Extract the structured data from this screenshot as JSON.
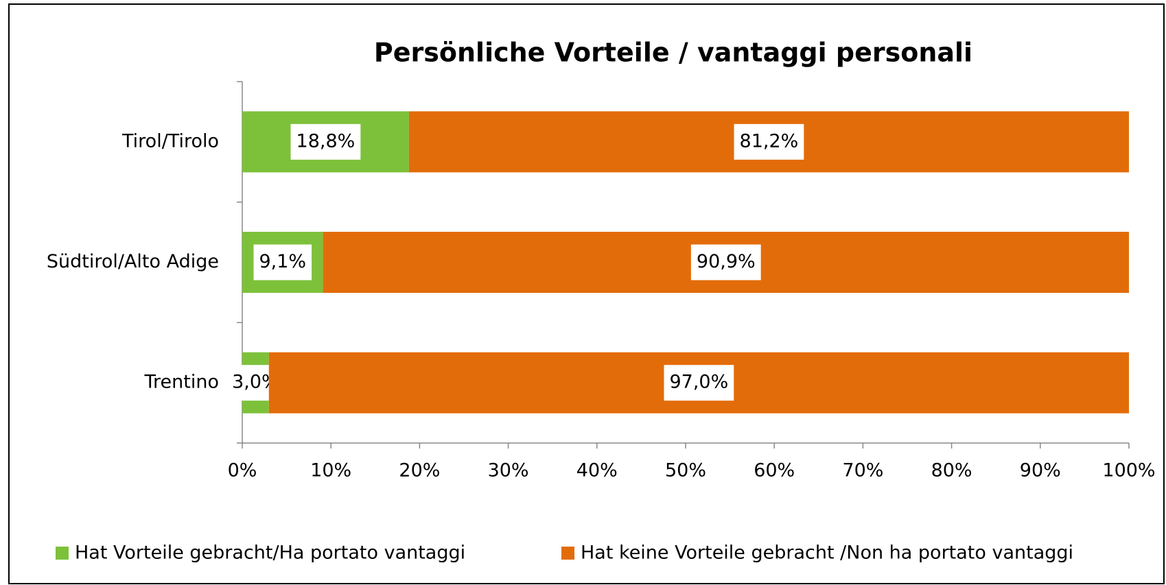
{
  "chart_data": {
    "type": "stacked-bar-horizontal",
    "title": "Persönliche Vorteile / vantaggi personali",
    "categories": [
      "Tirol/Tirolo",
      "Südtirol/Alto Adige",
      "Trentino"
    ],
    "series": [
      {
        "name": "Hat Vorteile gebracht/Ha portato vantaggi",
        "color": "#7dc13a",
        "values": [
          18.8,
          9.1,
          3.0
        ],
        "value_labels": [
          "18,8%",
          "9,1%",
          "3,0%"
        ]
      },
      {
        "name": "Hat keine Vorteile gebracht /Non ha portato vantaggi",
        "color": "#e36c0a",
        "values": [
          81.2,
          90.9,
          97.0
        ],
        "value_labels": [
          "81,2%",
          "90,9%",
          "97,0%"
        ]
      }
    ],
    "xlim": [
      0,
      100
    ],
    "xticks": [
      {
        "value": 0,
        "label": "0%"
      },
      {
        "value": 10,
        "label": "10%"
      },
      {
        "value": 20,
        "label": "20%"
      },
      {
        "value": 30,
        "label": "30%"
      },
      {
        "value": 40,
        "label": "40%"
      },
      {
        "value": 50,
        "label": "50%"
      },
      {
        "value": 60,
        "label": "60%"
      },
      {
        "value": 70,
        "label": "70%"
      },
      {
        "value": 80,
        "label": "80%"
      },
      {
        "value": 90,
        "label": "90%"
      },
      {
        "value": 100,
        "label": "100%"
      }
    ],
    "legend": "bottom"
  }
}
